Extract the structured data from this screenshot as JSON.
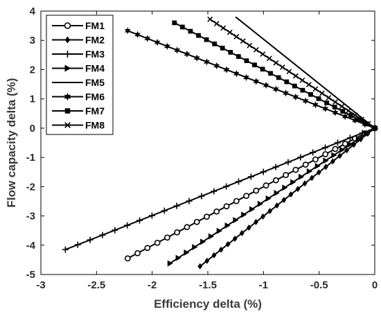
{
  "chart_data": {
    "type": "line",
    "title": "",
    "xlabel": "Efficiency delta (%)",
    "ylabel": "Flow capacity delta (%)",
    "xlim": [
      -3,
      0
    ],
    "ylim": [
      -5,
      4
    ],
    "xticks": [
      -3,
      -2.5,
      -2,
      -1.5,
      -1,
      -0.5,
      0
    ],
    "yticks": [
      -5,
      -4,
      -3,
      -2,
      -1,
      0,
      1,
      2,
      3,
      4
    ],
    "xtick_labels": [
      "-3",
      "-2.5",
      "-2",
      "-1.5",
      "-1",
      "-0.5",
      "0"
    ],
    "ytick_labels": [
      "-5",
      "-4",
      "-3",
      "-2",
      "-1",
      "0",
      "1",
      "2",
      "3",
      "4"
    ],
    "grid": false,
    "legend_position": "top-left",
    "series": [
      {
        "name": "FM1",
        "marker": "circle-open",
        "start": [
          -2.22,
          -4.45
        ],
        "end": [
          0,
          0
        ],
        "points": 26
      },
      {
        "name": "FM2",
        "marker": "diamond",
        "start": [
          -1.57,
          -4.72
        ],
        "end": [
          0,
          0
        ],
        "points": 26
      },
      {
        "name": "FM3",
        "marker": "plus",
        "start": [
          -2.78,
          -4.15
        ],
        "end": [
          0,
          0
        ],
        "points": 26
      },
      {
        "name": "FM4",
        "marker": "triangle-right",
        "start": [
          -1.84,
          -4.62
        ],
        "end": [
          0,
          0
        ],
        "points": 26
      },
      {
        "name": "FM5",
        "marker": "none",
        "start": [
          -1.25,
          3.8
        ],
        "end": [
          0,
          0
        ],
        "points": 2
      },
      {
        "name": "FM6",
        "marker": "hexagram",
        "start": [
          -2.22,
          3.33
        ],
        "end": [
          0,
          0
        ],
        "points": 26
      },
      {
        "name": "FM7",
        "marker": "square",
        "start": [
          -1.8,
          3.6
        ],
        "end": [
          0,
          0
        ],
        "points": 26
      },
      {
        "name": "FM8",
        "marker": "x",
        "start": [
          -1.48,
          3.72
        ],
        "end": [
          0,
          0
        ],
        "points": 26
      }
    ]
  }
}
